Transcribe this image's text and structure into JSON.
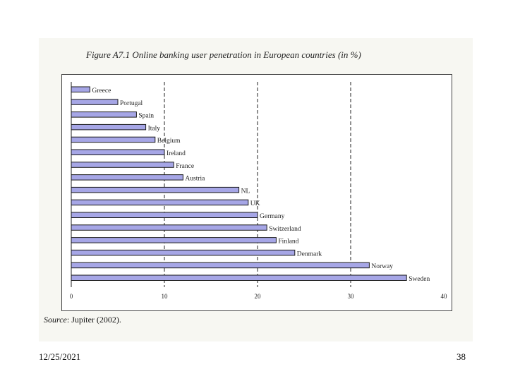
{
  "slide": {
    "date": "12/25/2021",
    "page_number": "38"
  },
  "source": {
    "label": "Source",
    "text": ": Jupiter (2002)."
  },
  "colors": {
    "bar_fill": "#a6a6e6",
    "bar_stroke": "#1a1a1a",
    "panel_bg": "#f7f7f2"
  },
  "chart_data": {
    "type": "bar",
    "orientation": "horizontal",
    "title": "Figure A7.1 Online banking user penetration in European countries (in %)",
    "xlabel": "",
    "ylabel": "",
    "xlim": [
      0,
      40
    ],
    "xticks": [
      0,
      10,
      20,
      30,
      40
    ],
    "grid": "vertical dashed",
    "legend": "none",
    "categories": [
      "Greece",
      "Portugal",
      "Spain",
      "Italy",
      "Belgium",
      "Ireland",
      "France",
      "Austria",
      "NL",
      "UK",
      "Germany",
      "Switzerland",
      "Finland",
      "Denmark",
      "Norway",
      "Sweden"
    ],
    "values": [
      2,
      5,
      7,
      8,
      9,
      10,
      11,
      12,
      18,
      19,
      20,
      21,
      22,
      24,
      32,
      36
    ]
  }
}
